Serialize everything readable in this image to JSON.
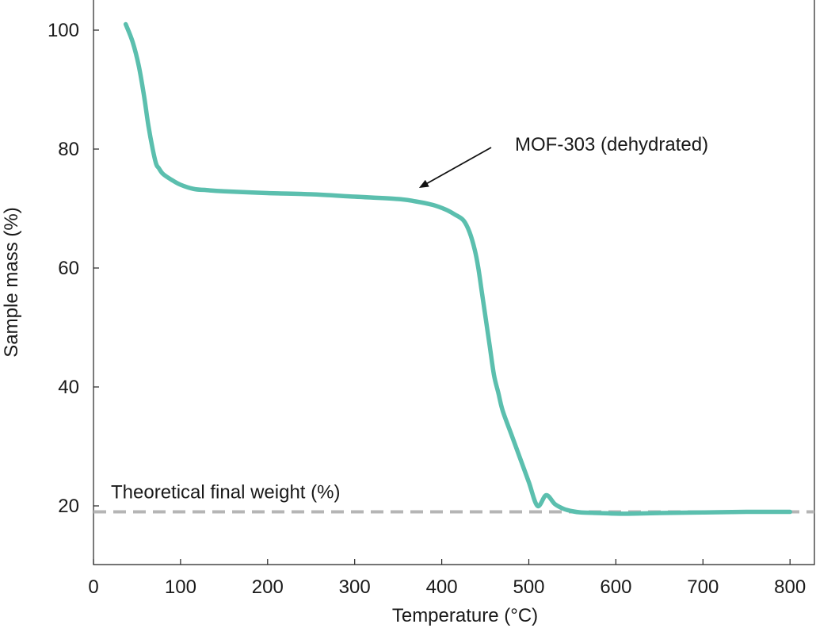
{
  "chart_data": {
    "type": "line",
    "title": "",
    "xlabel": "Temperature (°C)",
    "ylabel": "Sample mass (%)",
    "xlim": [
      0,
      830
    ],
    "ylim": [
      10,
      105
    ],
    "xticks": [
      0,
      100,
      200,
      300,
      400,
      500,
      600,
      700,
      800
    ],
    "yticks": [
      20,
      40,
      60,
      80,
      100
    ],
    "grid": false,
    "series": [
      {
        "name": "MOF-303 (dehydrated)",
        "color": "#5bbfae",
        "x": [
          37,
          45,
          52,
          58,
          63,
          68,
          72,
          75,
          80,
          90,
          100,
          115,
          130,
          150,
          200,
          250,
          300,
          350,
          370,
          390,
          405,
          415,
          425,
          432,
          438,
          442,
          446,
          450,
          455,
          460,
          465,
          470,
          480,
          490,
          500,
          510,
          520,
          530,
          540,
          550,
          560,
          580,
          600,
          620,
          650,
          700,
          750,
          800
        ],
        "y": [
          101,
          98,
          94,
          89,
          84,
          80,
          77.5,
          76.8,
          75.8,
          74.8,
          74,
          73.3,
          73.1,
          72.9,
          72.6,
          72.4,
          72,
          71.6,
          71.2,
          70.6,
          69.8,
          69,
          68,
          66,
          63,
          60,
          56,
          52,
          47,
          42,
          39,
          36,
          32,
          28,
          24,
          20,
          21.8,
          20.3,
          19.5,
          19.1,
          18.9,
          18.8,
          18.7,
          18.7,
          18.8,
          18.9,
          19.0,
          19.0
        ]
      }
    ],
    "reference_line": {
      "label": "Theoretical final weight (%)",
      "y": 19,
      "color": "#b5b5b5",
      "style": "dashed"
    },
    "annotations": [
      {
        "text": "MOF-303 (dehydrated)",
        "arrow_to": [
          370,
          71.2
        ]
      }
    ]
  }
}
